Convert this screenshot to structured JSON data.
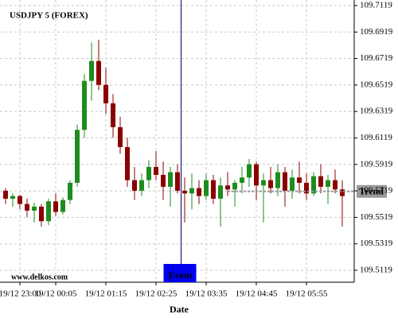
{
  "chart_data": {
    "type": "candlestick",
    "title": "USDJPY 5 (FOREX)",
    "source": "www.delkos.com",
    "x_label": "Date",
    "categories": [
      null,
      null,
      "19/12 23:00",
      null,
      null,
      null,
      null,
      "19/12 00:05",
      null,
      null,
      null,
      null,
      null,
      null,
      "19/12 01:15",
      null,
      null,
      null,
      null,
      null,
      null,
      "19/12 02:25",
      null,
      null,
      null,
      null,
      null,
      null,
      "19/12 03:35",
      null,
      null,
      null,
      null,
      null,
      null,
      "19/12 04:45",
      null,
      null,
      null,
      null,
      null,
      null,
      "19/12 05:55",
      null,
      null,
      null,
      null,
      null
    ],
    "open": [
      109.572,
      109.566,
      109.568,
      109.562,
      109.557,
      109.56,
      109.549,
      109.564,
      109.556,
      109.565,
      109.578,
      109.618,
      109.655,
      109.67,
      109.652,
      109.638,
      109.62,
      109.605,
      109.58,
      109.572,
      109.58,
      109.59,
      109.584,
      109.575,
      109.586,
      109.572,
      109.57,
      109.574,
      109.568,
      109.58,
      109.566,
      109.576,
      109.573,
      109.578,
      109.582,
      109.592,
      109.576,
      109.58,
      109.574,
      109.586,
      109.572,
      109.582,
      109.578,
      109.57,
      109.583,
      109.575,
      109.58,
      109.573
    ],
    "high": [
      109.574,
      109.57,
      109.569,
      109.566,
      109.563,
      109.562,
      109.566,
      109.57,
      109.567,
      109.58,
      109.622,
      109.66,
      109.684,
      109.686,
      109.665,
      109.645,
      109.628,
      109.612,
      109.59,
      109.585,
      109.595,
      109.602,
      109.594,
      109.59,
      109.592,
      109.582,
      109.585,
      109.58,
      109.585,
      109.584,
      109.582,
      109.586,
      109.58,
      109.59,
      109.596,
      109.594,
      109.585,
      109.59,
      109.592,
      109.59,
      109.588,
      109.594,
      109.585,
      109.586,
      109.592,
      109.584,
      109.588,
      109.58
    ],
    "low": [
      109.562,
      109.56,
      109.558,
      109.552,
      109.548,
      109.545,
      109.546,
      109.553,
      109.554,
      109.562,
      109.575,
      109.612,
      109.64,
      109.648,
      109.63,
      109.612,
      109.6,
      109.575,
      109.565,
      109.568,
      109.574,
      109.58,
      109.565,
      109.56,
      109.57,
      109.548,
      109.558,
      109.562,
      109.565,
      109.562,
      109.545,
      109.568,
      109.56,
      109.57,
      109.575,
      109.565,
      109.548,
      109.57,
      109.568,
      109.56,
      109.566,
      109.57,
      109.565,
      109.568,
      109.57,
      109.562,
      109.57,
      109.545
    ],
    "close": [
      109.566,
      109.568,
      109.562,
      109.557,
      109.56,
      109.549,
      109.564,
      109.556,
      109.565,
      109.578,
      109.618,
      109.655,
      109.67,
      109.652,
      109.638,
      109.62,
      109.605,
      109.58,
      109.572,
      109.58,
      109.59,
      109.584,
      109.575,
      109.586,
      109.572,
      109.57,
      109.574,
      109.568,
      109.58,
      109.566,
      109.576,
      109.573,
      109.578,
      109.582,
      109.592,
      109.576,
      109.58,
      109.574,
      109.586,
      109.572,
      109.582,
      109.578,
      109.57,
      109.583,
      109.575,
      109.58,
      109.573,
      109.568
    ],
    "up_color": "#1e8c1e",
    "down_color": "#8b0000",
    "ylim": [
      109.5029,
      109.7161
    ],
    "yticks": [
      109.5119,
      109.5319,
      109.5519,
      109.5719,
      109.5919,
      109.6119,
      109.6319,
      109.6519,
      109.6719,
      109.6919,
      109.7119
    ],
    "grid": true,
    "trend": {
      "label": "Trend",
      "value": 109.5715,
      "color": "#999999"
    },
    "event": {
      "label": "Event",
      "color": "#0000ee",
      "line_color": "#000066"
    }
  }
}
